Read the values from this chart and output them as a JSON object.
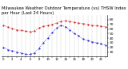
{
  "title": "Milwaukee Weather Outdoor Temperature (vs) THSW Index per Hour (Last 24 Hours)",
  "title_fontsize": 3.8,
  "background_color": "#ffffff",
  "grid_color": "#999999",
  "hours": [
    0,
    1,
    2,
    3,
    4,
    5,
    6,
    7,
    8,
    9,
    10,
    11,
    12,
    13,
    14,
    15,
    16,
    17,
    18,
    19,
    20,
    21,
    22,
    23
  ],
  "temp": [
    68,
    64,
    61,
    58,
    57,
    55,
    54,
    56,
    62,
    66,
    68,
    70,
    73,
    77,
    78,
    77,
    74,
    73,
    72,
    70,
    68,
    67,
    66,
    65
  ],
  "thsw": [
    20,
    15,
    12,
    10,
    8,
    5,
    5,
    8,
    18,
    30,
    40,
    52,
    62,
    68,
    65,
    58,
    50,
    45,
    38,
    35,
    32,
    30,
    28,
    25
  ],
  "temp_color": "#cc0000",
  "thsw_color": "#0000cc",
  "ylim": [
    0,
    90
  ],
  "yticks": [
    10,
    20,
    30,
    40,
    50,
    60,
    70,
    80
  ],
  "ytick_labels": [
    "10",
    "20",
    "30",
    "40",
    "50",
    "60",
    "70",
    "80"
  ],
  "ytick_fontsize": 3.2,
  "xtick_fontsize": 2.8,
  "marker_size": 1.0,
  "line_width": 0.5,
  "dot_spacing": ":"
}
